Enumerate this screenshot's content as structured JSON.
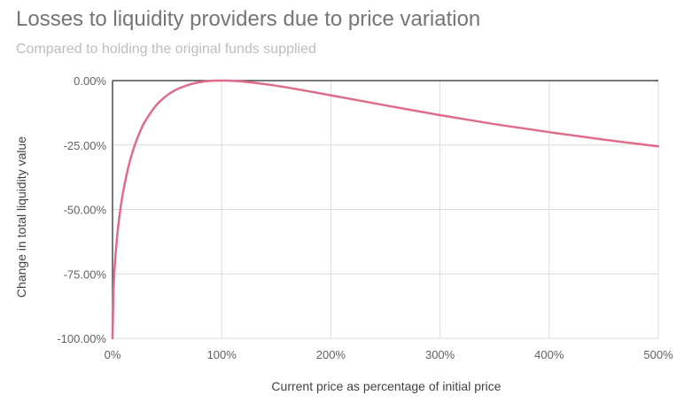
{
  "chart_data": {
    "type": "line",
    "title": "Losses to liquidity providers due to price variation",
    "subtitle": "Compared to holding the original funds supplied",
    "xlabel": "Current price as percentage of initial price",
    "ylabel": "Change in total liquidity value",
    "xlim": [
      0,
      500
    ],
    "ylim": [
      -100,
      0
    ],
    "x_ticks": [
      "0%",
      "100%",
      "200%",
      "300%",
      "400%",
      "500%"
    ],
    "y_ticks": [
      "0.00%",
      "-25.00%",
      "-50.00%",
      "-75.00%",
      "-100.00%"
    ],
    "grid": true,
    "legend": "none",
    "series": [
      {
        "color": "#e06c8c",
        "x": [
          0,
          1,
          2,
          3,
          5,
          7.5,
          10,
          15,
          20,
          25,
          30,
          40,
          50,
          60,
          70,
          80,
          90,
          100,
          110,
          125,
          150,
          175,
          200,
          250,
          300,
          350,
          400,
          450,
          500
        ],
        "y": [
          -100,
          -80.2,
          -72.3,
          -66.4,
          -57.4,
          -49.0,
          -42.5,
          -32.7,
          -25.5,
          -20.0,
          -15.7,
          -9.6,
          -5.7,
          -3.2,
          -1.6,
          -0.6,
          -0.1,
          0,
          -0.1,
          -0.6,
          -2.0,
          -3.8,
          -5.7,
          -9.6,
          -13.4,
          -16.9,
          -20.0,
          -22.9,
          -25.5
        ]
      }
    ]
  }
}
